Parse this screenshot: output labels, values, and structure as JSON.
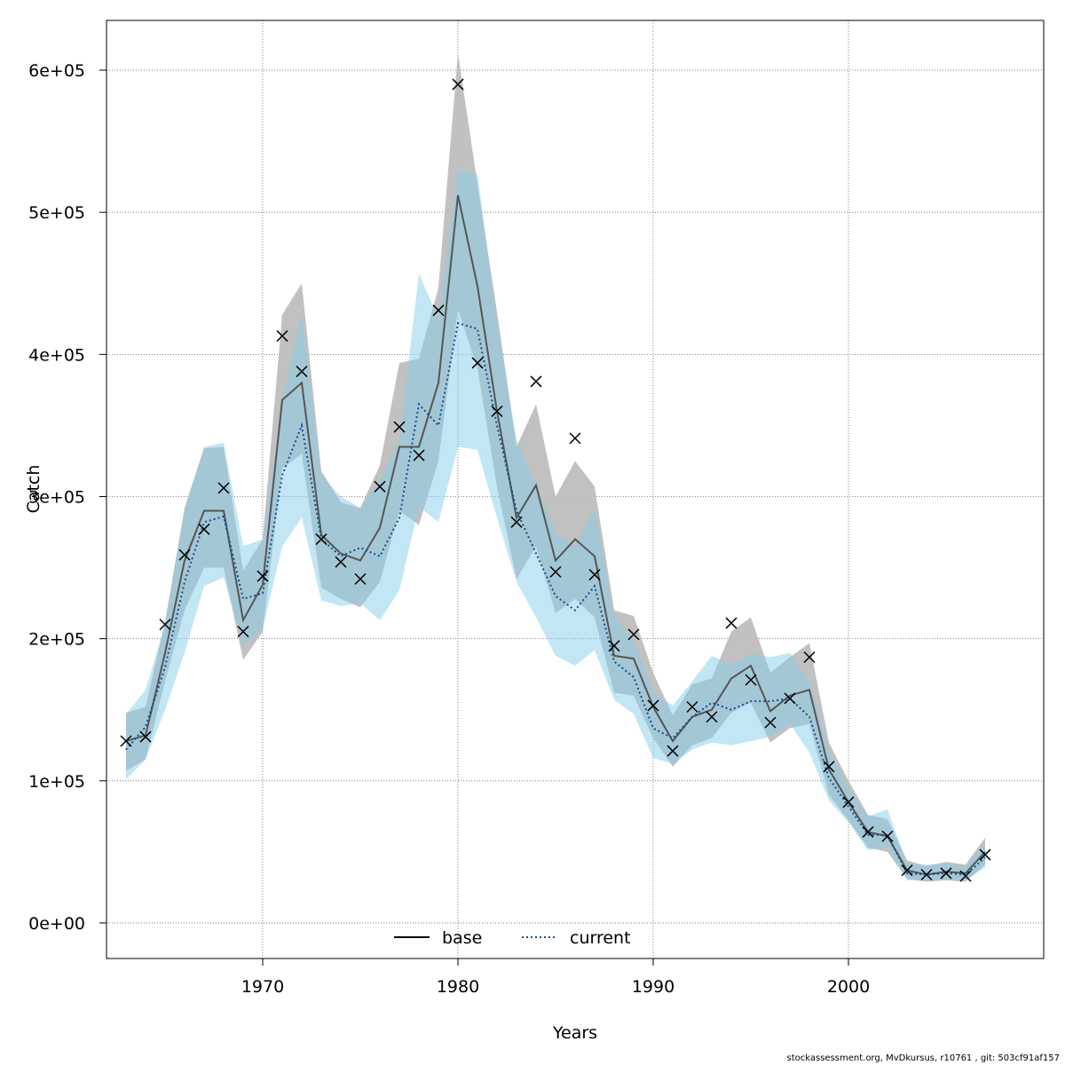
{
  "chart_data": {
    "type": "line",
    "xlabel": "Years",
    "ylabel": "Catch",
    "xlim": [
      1962,
      2010
    ],
    "ylim": [
      -25000,
      635000
    ],
    "x_ticks": [
      1970,
      1980,
      1990,
      2000
    ],
    "y_ticks": [
      0,
      100000,
      200000,
      300000,
      400000,
      500000,
      600000
    ],
    "y_tick_labels": [
      "0e+00",
      "1e+05",
      "2e+05",
      "3e+05",
      "4e+05",
      "5e+05",
      "6e+05"
    ],
    "grid": true,
    "legend": {
      "placement": "bottom-center",
      "entries": [
        "base",
        "current"
      ]
    },
    "colors": {
      "base_band": "#bebebe",
      "current_band": "#87ceeb",
      "base_line": "#555555",
      "current_line": "#104e8b",
      "observed": "#000000"
    },
    "x": [
      1963,
      1964,
      1965,
      1966,
      1967,
      1968,
      1969,
      1970,
      1971,
      1972,
      1973,
      1974,
      1975,
      1976,
      1977,
      1978,
      1979,
      1980,
      1981,
      1982,
      1983,
      1984,
      1985,
      1986,
      1987,
      1988,
      1989,
      1990,
      1991,
      1992,
      1993,
      1994,
      1995,
      1996,
      1997,
      1998,
      1999,
      2000,
      2001,
      2002,
      2003,
      2004,
      2005,
      2006,
      2007
    ],
    "observed": [
      128000,
      131000,
      210000,
      259000,
      277000,
      306000,
      205000,
      244000,
      413000,
      388000,
      270000,
      254000,
      242000,
      307000,
      349000,
      329000,
      431000,
      590000,
      394000,
      360000,
      282000,
      381000,
      247000,
      341000,
      245000,
      195000,
      203000,
      153000,
      121000,
      152000,
      145000,
      211000,
      171000,
      141000,
      158000,
      187000,
      110000,
      85000,
      64000,
      61000,
      37000,
      34000,
      35000,
      33000,
      48000
    ],
    "series": [
      {
        "name": "base",
        "style": "solid",
        "values": [
          128000,
          132000,
          190000,
          255000,
          290000,
          290000,
          213000,
          238000,
          368000,
          380000,
          273000,
          260000,
          255000,
          278000,
          335000,
          335000,
          380000,
          512000,
          448000,
          360000,
          285000,
          308000,
          255000,
          270000,
          258000,
          188000,
          186000,
          152000,
          128000,
          145000,
          150000,
          172000,
          181000,
          149000,
          160000,
          164000,
          108000,
          85000,
          64000,
          61000,
          37000,
          34000,
          36000,
          35000,
          50000
        ],
        "lower": [
          107000,
          115000,
          170000,
          220000,
          250000,
          250000,
          185000,
          205000,
          320000,
          330000,
          236000,
          228000,
          222000,
          240000,
          290000,
          280000,
          325000,
          432000,
          390000,
          307000,
          242000,
          265000,
          218000,
          228000,
          215000,
          162000,
          160000,
          130000,
          110000,
          125000,
          130000,
          148000,
          155000,
          127000,
          137000,
          140000,
          90000,
          72000,
          53000,
          50000,
          31000,
          29000,
          30000,
          29000,
          41000
        ],
        "upper": [
          148000,
          152000,
          212000,
          292000,
          334000,
          335000,
          248000,
          270000,
          428000,
          450000,
          318000,
          296000,
          292000,
          322000,
          394000,
          397000,
          447000,
          612000,
          520000,
          430000,
          335000,
          365000,
          300000,
          325000,
          307000,
          220000,
          216000,
          176000,
          146000,
          168000,
          172000,
          205000,
          215000,
          176000,
          187000,
          197000,
          127000,
          100000,
          76000,
          73000,
          44000,
          40000,
          43000,
          41000,
          60000
        ]
      },
      {
        "name": "current",
        "style": "dotted",
        "values": [
          122000,
          138000,
          180000,
          240000,
          282000,
          286000,
          228000,
          232000,
          315000,
          350000,
          270000,
          258000,
          264000,
          258000,
          285000,
          365000,
          350000,
          422000,
          418000,
          350000,
          290000,
          260000,
          230000,
          220000,
          237000,
          184000,
          173000,
          137000,
          130000,
          145000,
          155000,
          150000,
          156000,
          156000,
          158000,
          145000,
          102000,
          82000,
          62000,
          62000,
          35000,
          34000,
          35000,
          34000,
          46000
        ],
        "lower": [
          101000,
          115000,
          150000,
          190000,
          237000,
          243000,
          195000,
          207000,
          265000,
          285000,
          227000,
          223000,
          225000,
          213000,
          234000,
          293000,
          282000,
          335000,
          333000,
          285000,
          240000,
          215000,
          188000,
          181000,
          192000,
          157000,
          147000,
          116000,
          112000,
          122000,
          127000,
          125000,
          128000,
          131000,
          140000,
          120000,
          86000,
          71000,
          51000,
          54000,
          30000,
          30000,
          30000,
          30000,
          39000
        ],
        "upper": [
          147000,
          164000,
          210000,
          292000,
          335000,
          338000,
          265000,
          270000,
          368000,
          430000,
          315000,
          300000,
          292000,
          312000,
          340000,
          457000,
          425000,
          530000,
          527000,
          422000,
          340000,
          308000,
          275000,
          265000,
          293000,
          215000,
          200000,
          163000,
          153000,
          170000,
          188000,
          182000,
          190000,
          187000,
          190000,
          170000,
          120000,
          95000,
          75000,
          80000,
          42000,
          41000,
          42000,
          40000,
          56000
        ]
      }
    ]
  },
  "footer_text": "stockassessment.org, MvDkursus, r10761 , git: 503cf91af157"
}
